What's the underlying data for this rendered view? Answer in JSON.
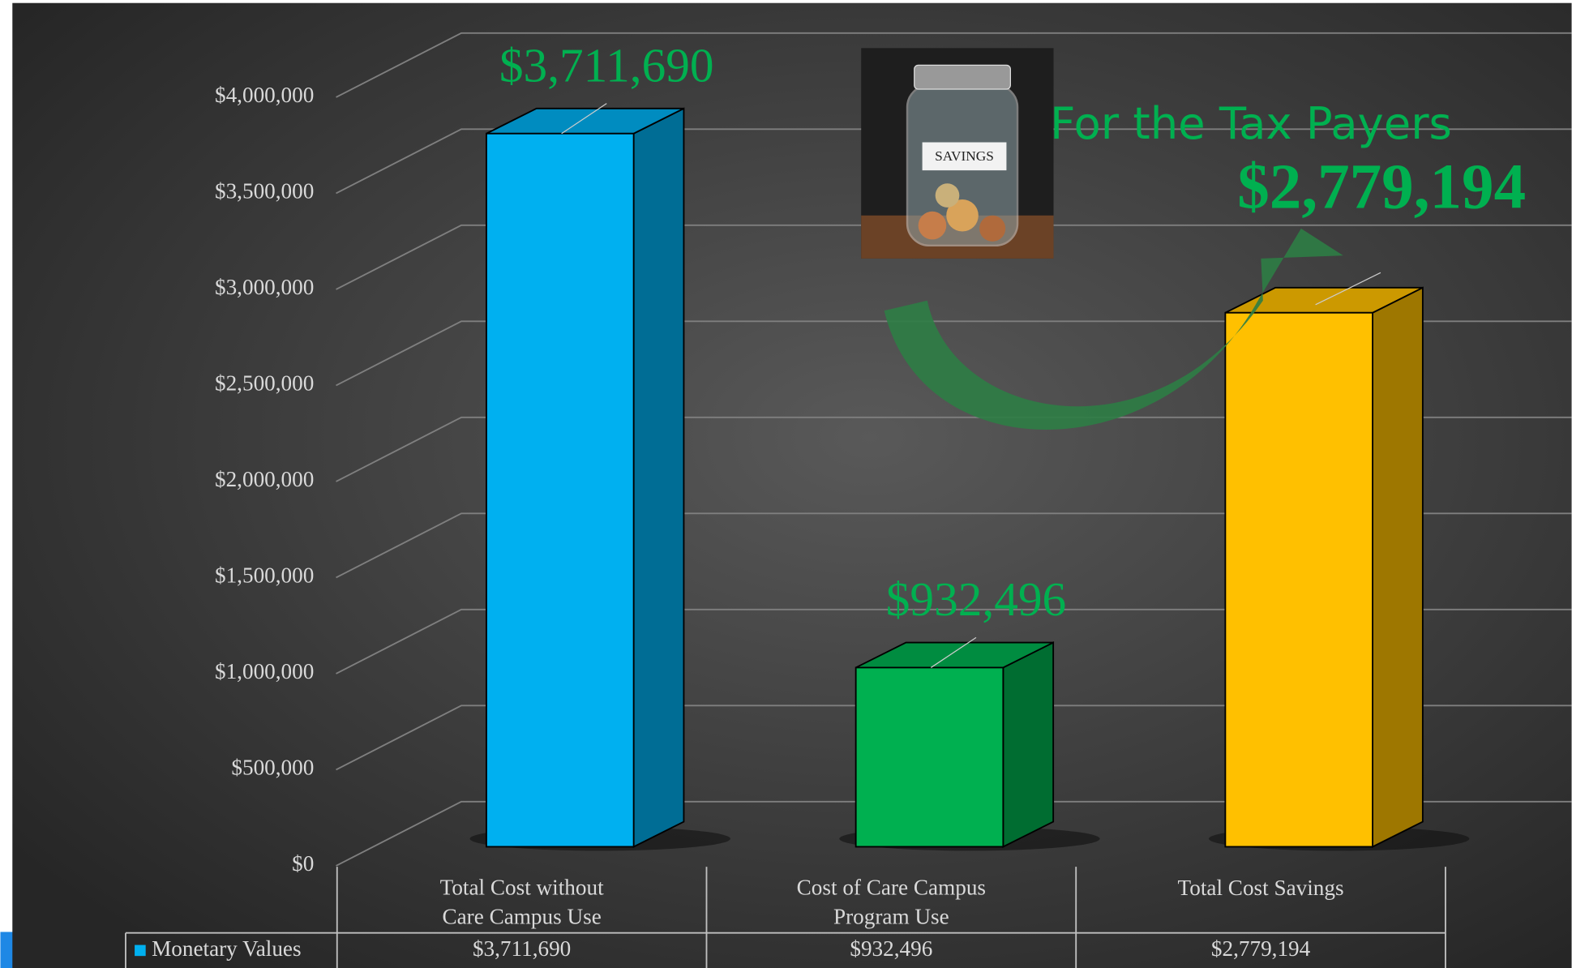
{
  "chart_data": {
    "type": "bar",
    "annotation": "For the Tax Payers",
    "categories": [
      "Total Cost without Care Campus Use",
      "Cost of Care Campus Program Use",
      "Total Cost Savings"
    ],
    "series": [
      {
        "name": "Monetary Values",
        "color": "#00b0f0",
        "colors": [
          "#00b0f0",
          "#00b050",
          "#ffc000"
        ],
        "values": [
          3711690,
          932496,
          2779194
        ],
        "value_labels": [
          "$3,711,690",
          "$932,496",
          "$2,779,194"
        ]
      }
    ],
    "ylim": [
      0,
      4000000
    ],
    "yticks": [
      {
        "value": 0,
        "label": "$0"
      },
      {
        "value": 500000,
        "label": "$500,000"
      },
      {
        "value": 1000000,
        "label": "$1,000,000"
      },
      {
        "value": 1500000,
        "label": "$1,500,000"
      },
      {
        "value": 2000000,
        "label": "$2,000,000"
      },
      {
        "value": 2500000,
        "label": "$2,500,000"
      },
      {
        "value": 3000000,
        "label": "$3,000,000"
      },
      {
        "value": 3500000,
        "label": "$3,500,000"
      },
      {
        "value": 4000000,
        "label": "$4,000,000"
      }
    ],
    "grid": true
  }
}
